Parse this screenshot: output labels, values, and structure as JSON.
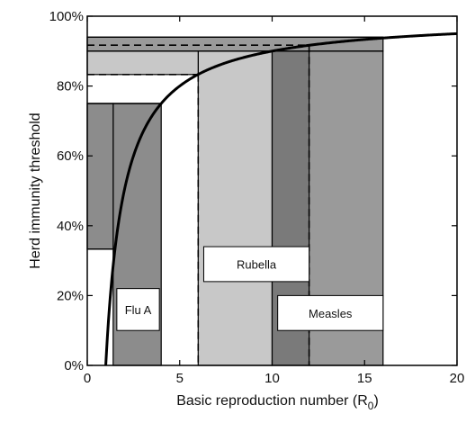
{
  "chart_data": {
    "type": "line",
    "title": "",
    "xlabel": "Basic reproduction number (R",
    "xlabel_subscript": "0",
    "xlabel_suffix": ")",
    "ylabel": "Herd immunity threshold",
    "xlim": [
      0,
      20
    ],
    "ylim": [
      0,
      1
    ],
    "x_ticks": [
      {
        "value": 0,
        "label": "0"
      },
      {
        "value": 5,
        "label": "5"
      },
      {
        "value": 10,
        "label": "10"
      },
      {
        "value": 15,
        "label": "15"
      },
      {
        "value": 20,
        "label": "20"
      }
    ],
    "y_ticks": [
      {
        "value": 0,
        "label": "0%"
      },
      {
        "value": 0.2,
        "label": "20%"
      },
      {
        "value": 0.4,
        "label": "40%"
      },
      {
        "value": 0.6,
        "label": "60%"
      },
      {
        "value": 0.8,
        "label": "80%"
      },
      {
        "value": 1.0,
        "label": "100%"
      }
    ],
    "grid": false,
    "curve": {
      "formula": "1 - 1/R0",
      "x_start": 1,
      "x_end": 20
    },
    "shaded_regions": [
      {
        "x0": 1.4,
        "x1": 4,
        "y_top": 0.75,
        "color": "#8c8c8c"
      },
      {
        "x0": 0,
        "x1": 1.4,
        "y_top": 0.75,
        "y_bottom": 0.333,
        "color": "#8c8c8c"
      },
      {
        "x0": 6,
        "x1": 10,
        "y_top": 0.9,
        "color": "#c8c8c8"
      },
      {
        "x0": 10,
        "x1": 12,
        "y_top": 0.9,
        "color": "#7a7a7a"
      },
      {
        "x0": 12,
        "x1": 16,
        "y_top": 0.9,
        "color": "#9a9a9a"
      },
      {
        "x0": 0,
        "x1": 6,
        "y_top": 0.9,
        "y_bottom": 0.833,
        "color": "#c8c8c8"
      },
      {
        "x0": 0,
        "x1": 16,
        "y_top": 0.94,
        "y_bottom": 0.9,
        "color": "#9a9a9a"
      }
    ],
    "dashed_lines": [
      {
        "x": [
          0,
          6
        ],
        "y": [
          0.833,
          0.833
        ]
      },
      {
        "x": [
          6,
          6
        ],
        "y": [
          0.833,
          0
        ]
      },
      {
        "x": [
          0,
          12
        ],
        "y": [
          0.917,
          0.917
        ]
      },
      {
        "x": [
          12,
          12
        ],
        "y": [
          0.917,
          0
        ]
      }
    ],
    "solid_lines": [
      {
        "x": [
          0,
          4
        ],
        "y": [
          0.75,
          0.75
        ]
      },
      {
        "x": [
          0,
          1.4
        ],
        "y": [
          0.333,
          0.333
        ]
      },
      {
        "x": [
          0,
          16
        ],
        "y": [
          0.9,
          0.9
        ]
      },
      {
        "x": [
          0,
          16
        ],
        "y": [
          0.94,
          0.94
        ]
      }
    ],
    "annotations": [
      {
        "text": "Flu A",
        "x0": 1.6,
        "x1": 3.9,
        "y0": 0.1,
        "y1": 0.22
      },
      {
        "text": "Rubella",
        "x0": 6.3,
        "x1": 12.0,
        "y0": 0.24,
        "y1": 0.34
      },
      {
        "text": "Measles",
        "x0": 10.3,
        "x1": 16.0,
        "y0": 0.1,
        "y1": 0.2
      }
    ]
  }
}
